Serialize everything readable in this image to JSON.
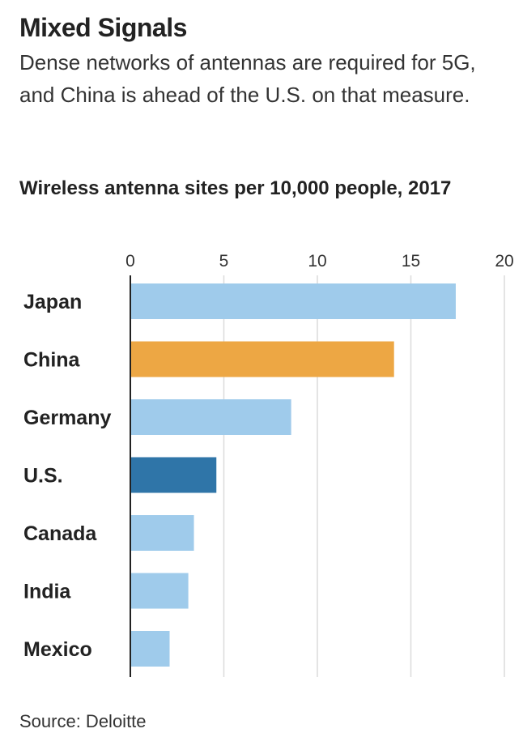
{
  "header": {
    "title": "Mixed Signals",
    "subtitle": "Dense networks of antennas are required for 5G, and China is ahead of the U.S. on that measure."
  },
  "chart_heading": "Wireless antenna sites per 10,000 people, 2017",
  "source": "Source: Deloitte",
  "colors": {
    "default_bar": "#9fcbeb",
    "china_bar": "#eda744",
    "us_bar": "#2f75a8",
    "gridline": "#dcdcdc",
    "axis": "#222222"
  },
  "chart_data": {
    "type": "bar",
    "orientation": "horizontal",
    "title": "Wireless antenna sites per 10,000 people, 2017",
    "categories": [
      "Japan",
      "China",
      "Germany",
      "U.S.",
      "Canada",
      "India",
      "Mexico"
    ],
    "values": [
      17.4,
      14.1,
      8.6,
      4.6,
      3.4,
      3.1,
      2.1
    ],
    "bar_colors": [
      "#9fcbeb",
      "#eda744",
      "#9fcbeb",
      "#2f75a8",
      "#9fcbeb",
      "#9fcbeb",
      "#9fcbeb"
    ],
    "xlim": [
      0,
      20
    ],
    "xticks": [
      0,
      5,
      10,
      15,
      20
    ],
    "xtick_labels": [
      "0",
      "5",
      "10",
      "15",
      "20"
    ],
    "xlabel": "",
    "ylabel": "",
    "grid": true,
    "axis_position": "top"
  }
}
